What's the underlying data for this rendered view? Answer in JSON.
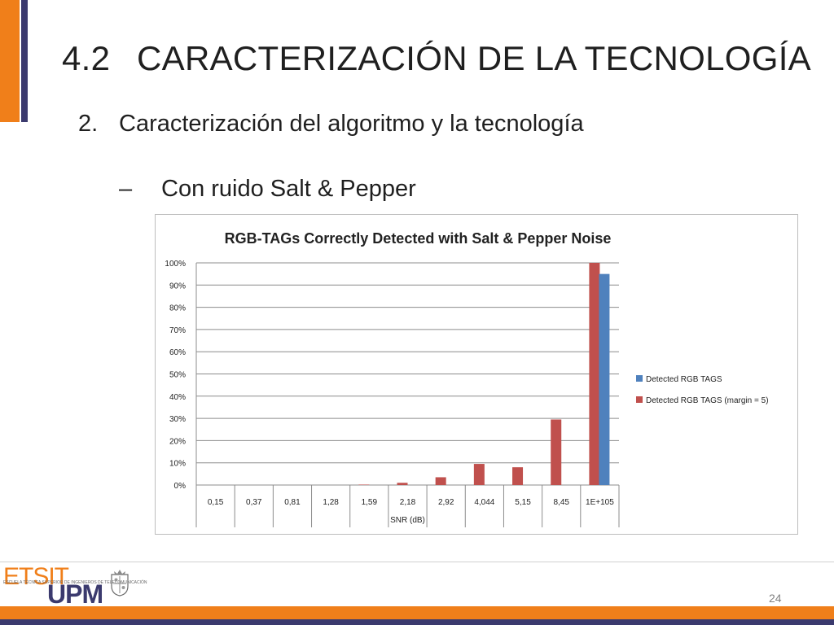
{
  "slide": {
    "section_number": "4.2",
    "title": "CARACTERIZACIÓN DE LA TECNOLOGÍA",
    "list_number": "2.",
    "list_item": "Caracterización del algoritmo y la tecnología",
    "sub_dash": "–",
    "sub_item": "Con ruido Salt & Pepper",
    "page_number": "24"
  },
  "footer": {
    "logo_etsit": "ETSIT",
    "logo_upm": "UPM",
    "logo_subtext": "ESCUELA TÉCNICA SUPERIOR DE INGENIEROS DE TELECOMUNICACIÓN",
    "crest_icon": "university-crest-icon",
    "accent_orange": "#f07f1a",
    "accent_navy": "#3b3a6e"
  },
  "chart_data": {
    "type": "bar",
    "title": "RGB-TAGs Correctly Detected with Salt & Pepper Noise",
    "xlabel": "SNR (dB)",
    "ylabel": "",
    "categories": [
      "0,15",
      "0,37",
      "0,81",
      "1,28",
      "1,59",
      "2,18",
      "2,92",
      "4,044",
      "5,15",
      "8,45",
      "1E+105"
    ],
    "series": [
      {
        "name": "Detected RGB TAGS (margin = 5)",
        "color": "#c0504d",
        "values": [
          0,
          0,
          0,
          0,
          0.2,
          1,
          3.5,
          9.5,
          8,
          29.5,
          100
        ]
      },
      {
        "name": "Detected RGB TAGS",
        "color": "#4f81bd",
        "values": [
          0,
          0,
          0,
          0,
          0,
          0,
          0,
          0,
          0,
          0,
          95
        ]
      }
    ],
    "legend_order": [
      1,
      0
    ],
    "ylim": [
      0,
      100
    ],
    "yticks": [
      "0%",
      "10%",
      "20%",
      "30%",
      "40%",
      "50%",
      "60%",
      "70%",
      "80%",
      "90%",
      "100%"
    ],
    "grid": true,
    "legend": "right"
  }
}
